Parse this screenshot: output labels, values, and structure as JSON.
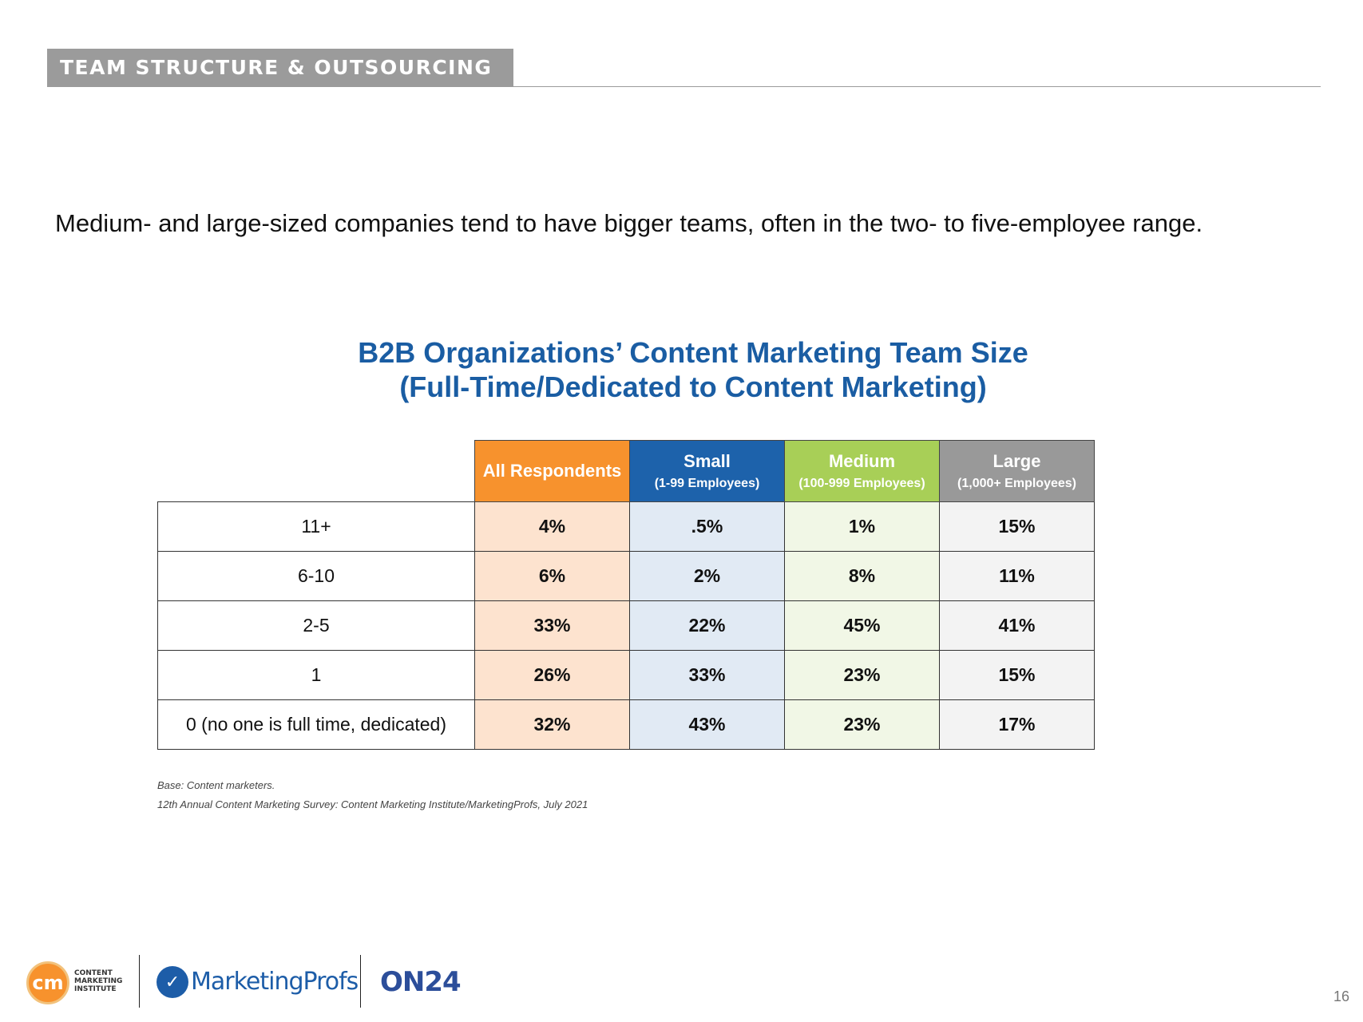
{
  "header": {
    "section_label": "TEAM STRUCTURE & OUTSOURCING"
  },
  "subtitle": "Medium- and large-sized companies tend to have bigger teams, often in the two- to five-employee range.",
  "table": {
    "title_line1": "B2B Organizations’ Content Marketing Team Size",
    "title_line2": "(Full-Time/Dedicated to Content Marketing)",
    "columns": [
      {
        "title": "All Respondents",
        "sub": "",
        "color": "#f7922d"
      },
      {
        "title": "Small",
        "sub": "(1-99 Employees)",
        "color": "#1d62ab"
      },
      {
        "title": "Medium",
        "sub": "(100-999 Employees)",
        "color": "#a8cf57"
      },
      {
        "title": "Large",
        "sub": "(1,000+ Employees)",
        "color": "#999999"
      }
    ],
    "rows": [
      {
        "label": "11+",
        "values": [
          "4%",
          ".5%",
          "1%",
          "15%"
        ]
      },
      {
        "label": "6-10",
        "values": [
          "6%",
          "2%",
          "8%",
          "11%"
        ]
      },
      {
        "label": "2-5",
        "values": [
          "33%",
          "22%",
          "45%",
          "41%"
        ]
      },
      {
        "label": "1",
        "values": [
          "26%",
          "33%",
          "23%",
          "15%"
        ]
      },
      {
        "label": "0 (no one is full time, dedicated)",
        "values": [
          "32%",
          "43%",
          "23%",
          "17%"
        ]
      }
    ]
  },
  "notes": {
    "base": "Base: Content marketers.",
    "source": "12th Annual Content Marketing Survey: Content Marketing Institute/MarketingProfs, July 2021"
  },
  "footer": {
    "cmi_mark": "cm",
    "cmi_line1": "CONTENT",
    "cmi_line2": "MARKETING",
    "cmi_line3": "INSTITUTE",
    "marketingprofs": "MarketingProfs",
    "on24_on": "ON",
    "on24_num": "24",
    "page_number": "16"
  }
}
